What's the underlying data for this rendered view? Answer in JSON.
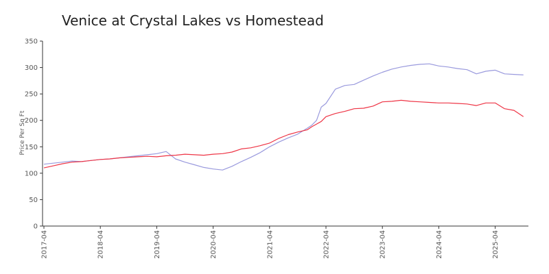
{
  "chart_data": {
    "type": "line",
    "title": "Venice at Crystal Lakes vs Homestead",
    "ylabel": "Price Per Sq Ft",
    "xlabel": "",
    "ylim": [
      0,
      350
    ],
    "yticks": [
      0,
      50,
      100,
      150,
      200,
      250,
      300,
      350
    ],
    "xticks": [
      "2017-04",
      "2018-04",
      "2019-04",
      "2020-04",
      "2021-04",
      "2022-04",
      "2023-04",
      "2024-04",
      "2025-04"
    ],
    "grid": false,
    "legend": "none",
    "x": [
      "2017-04",
      "2017-06",
      "2017-08",
      "2017-10",
      "2017-12",
      "2018-02",
      "2018-04",
      "2018-06",
      "2018-08",
      "2018-10",
      "2018-12",
      "2019-02",
      "2019-04",
      "2019-06",
      "2019-08",
      "2019-10",
      "2019-12",
      "2020-02",
      "2020-04",
      "2020-06",
      "2020-08",
      "2020-10",
      "2020-12",
      "2021-02",
      "2021-04",
      "2021-06",
      "2021-08",
      "2021-10",
      "2021-12",
      "2022-01",
      "2022-02",
      "2022-03",
      "2022-04",
      "2022-06",
      "2022-08",
      "2022-10",
      "2022-12",
      "2023-02",
      "2023-04",
      "2023-06",
      "2023-08",
      "2023-10",
      "2023-12",
      "2024-02",
      "2024-04",
      "2024-06",
      "2024-08",
      "2024-10",
      "2024-12",
      "2025-02",
      "2025-04",
      "2025-06",
      "2025-08",
      "2025-10"
    ],
    "series": [
      {
        "color": "#9999dd",
        "values": [
          117,
          119,
          121,
          123,
          122,
          124,
          126,
          127,
          129,
          131,
          133,
          135,
          137,
          141,
          127,
          121,
          116,
          111,
          108,
          106,
          113,
          122,
          130,
          139,
          150,
          159,
          167,
          174,
          185,
          191,
          200,
          225,
          232,
          259,
          266,
          268,
          276,
          284,
          291,
          297,
          301,
          304,
          306,
          307,
          303,
          301,
          298,
          296,
          288,
          293,
          295,
          288,
          287,
          286
        ]
      },
      {
        "color": "#ee3344",
        "values": [
          110,
          114,
          118,
          121,
          122,
          124,
          126,
          127,
          129,
          130,
          131,
          132,
          131,
          133,
          134,
          136,
          135,
          134,
          136,
          137,
          140,
          146,
          148,
          152,
          157,
          166,
          173,
          178,
          182,
          188,
          193,
          198,
          207,
          213,
          217,
          222,
          223,
          227,
          235,
          236,
          238,
          236,
          235,
          234,
          233,
          233,
          232,
          231,
          228,
          233,
          233,
          222,
          219,
          207
        ]
      }
    ]
  }
}
